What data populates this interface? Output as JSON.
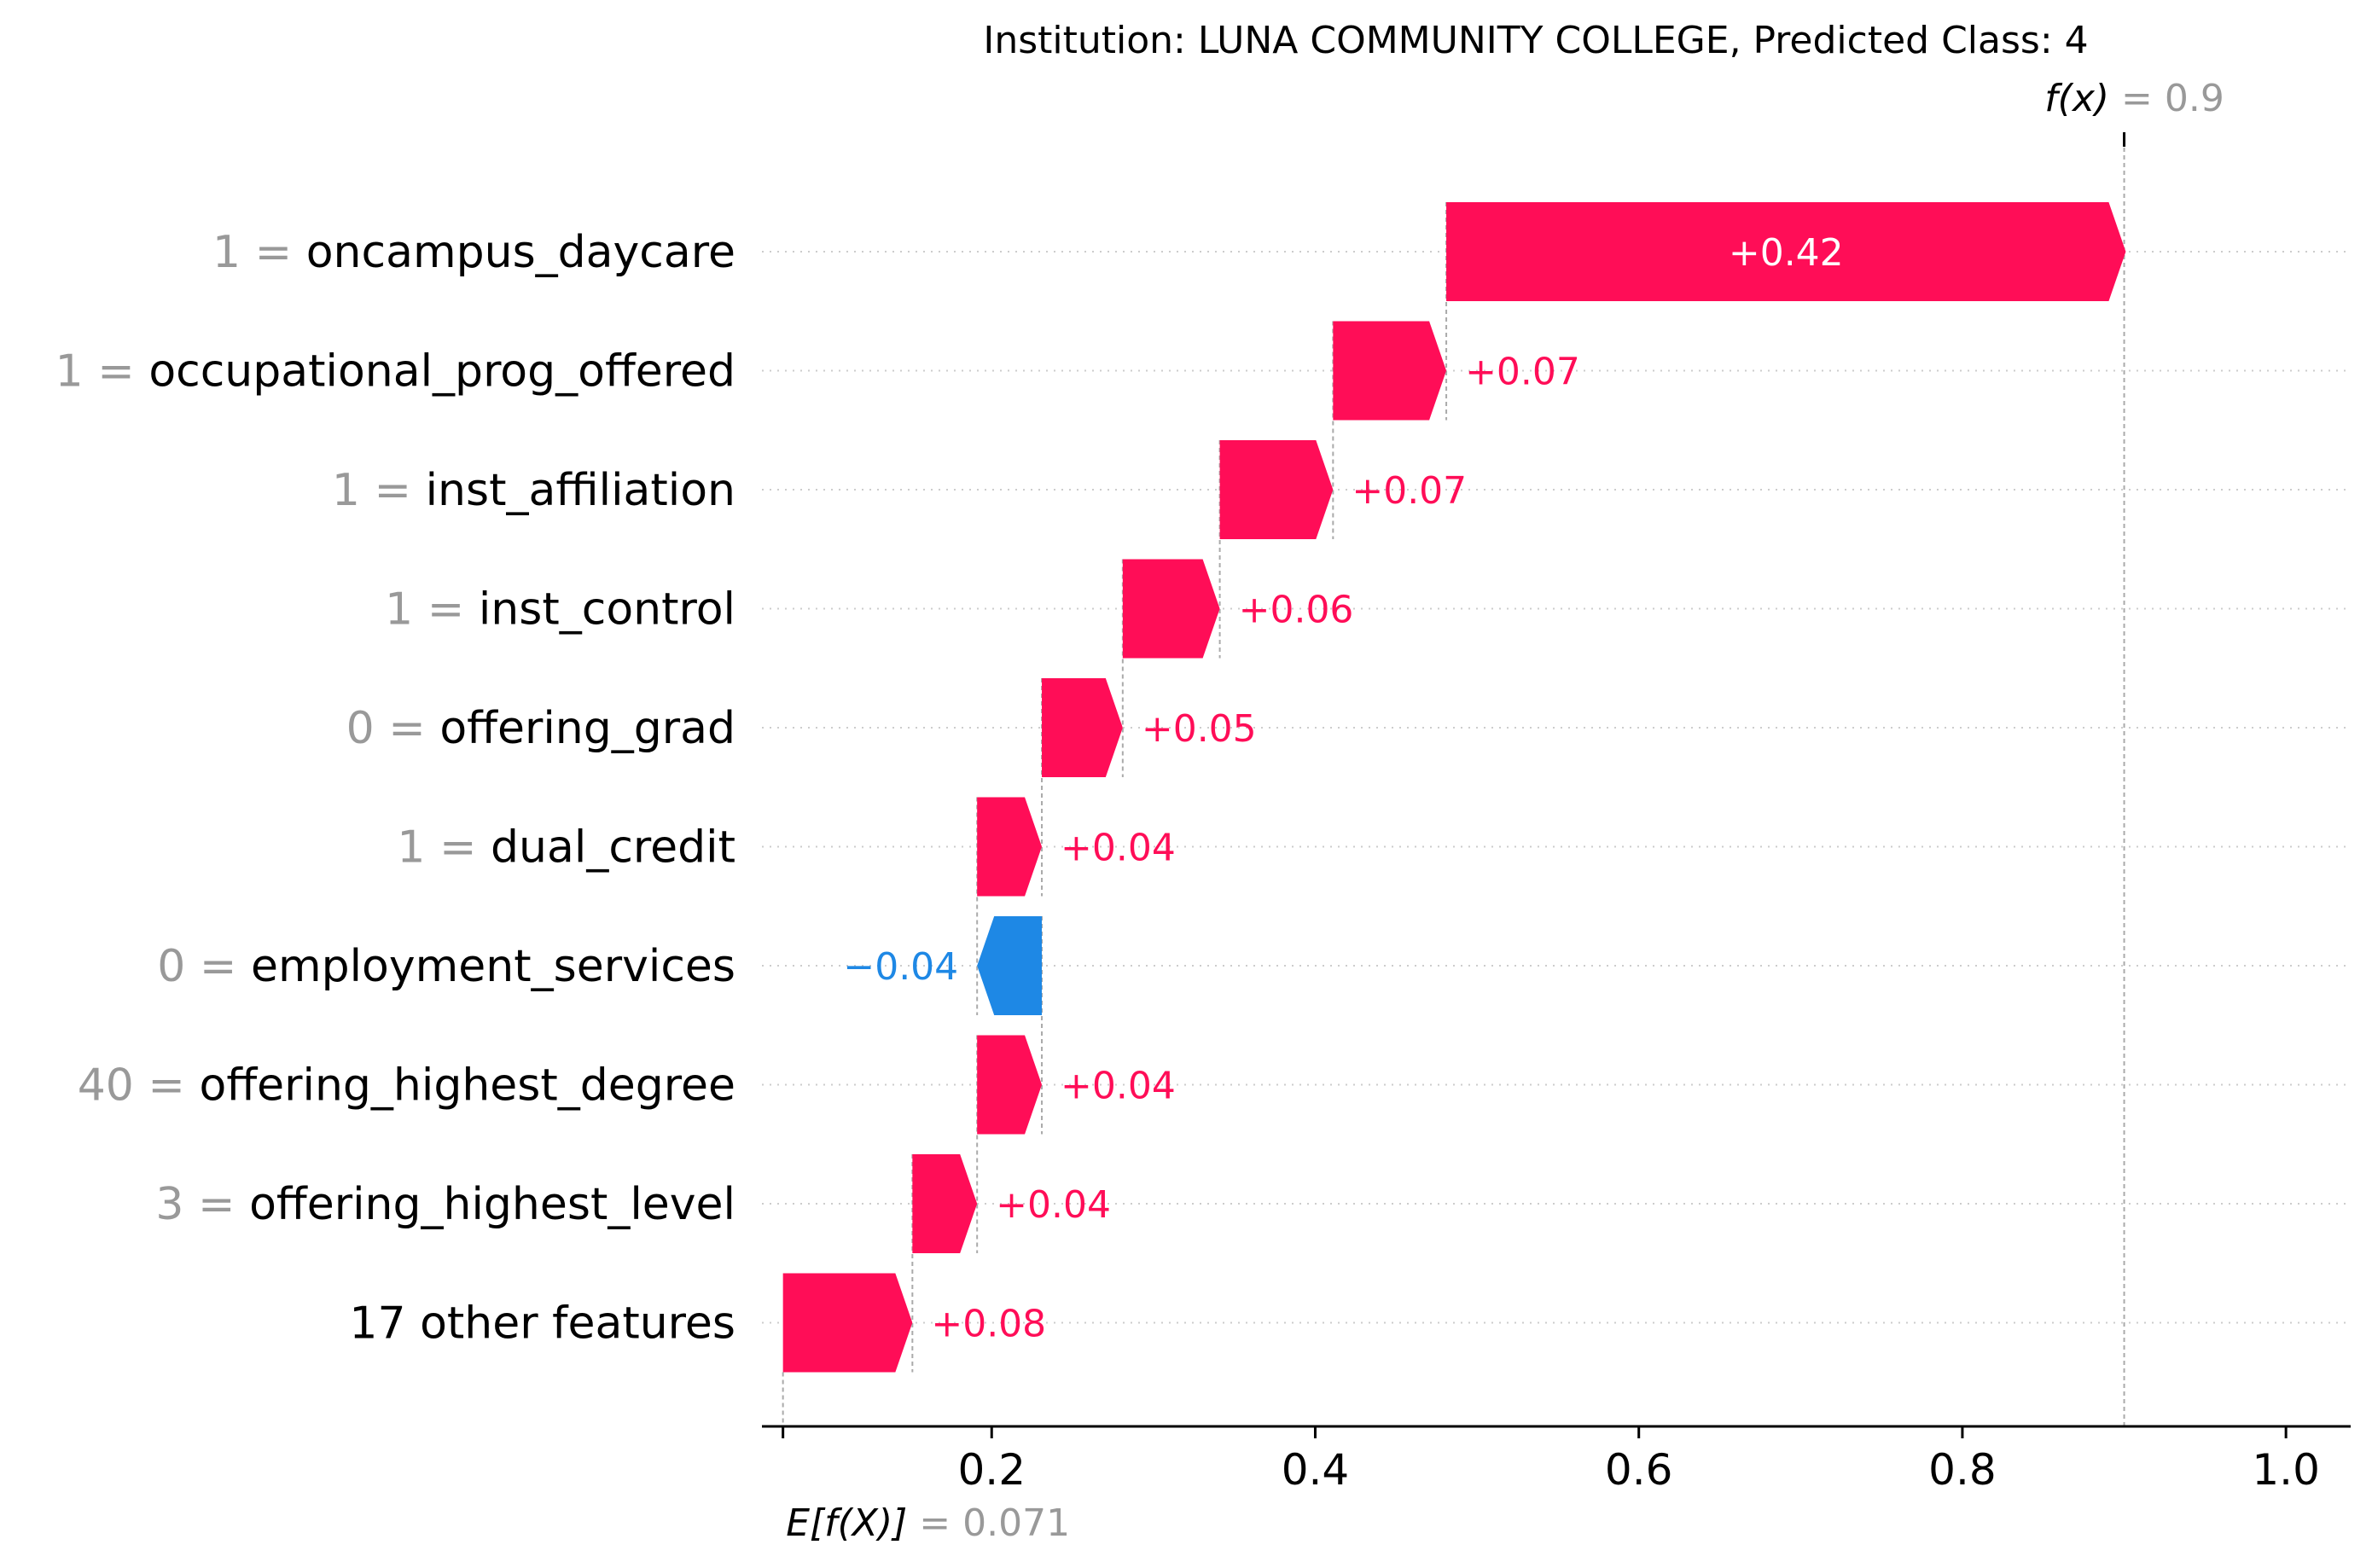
{
  "chart_data": {
    "type": "waterfall",
    "title": "Institution: LUNA COMMUNITY COLLEGE, Predicted Class: 4",
    "xlim": [
      0.058,
      1.04
    ],
    "xticks": [
      0.2,
      0.4,
      0.6,
      0.8,
      1.0
    ],
    "xtick_labels": [
      "0.2",
      "0.4",
      "0.6",
      "0.8",
      "1.0"
    ],
    "base_value": 0.071,
    "base_label": "E[f(X)]",
    "base_value_label": "= 0.071",
    "output_value": 0.9,
    "output_label": "f(x)",
    "output_value_label": "= 0.9",
    "features": [
      {
        "value": "1",
        "name": "oncampus_daycare",
        "contribution": 0.42,
        "label": "+0.42",
        "label_inside": true
      },
      {
        "value": "1",
        "name": "occupational_prog_offered",
        "contribution": 0.07,
        "label": "+0.07"
      },
      {
        "value": "1",
        "name": "inst_affiliation",
        "contribution": 0.07,
        "label": "+0.07"
      },
      {
        "value": "1",
        "name": "inst_control",
        "contribution": 0.06,
        "label": "+0.06"
      },
      {
        "value": "0",
        "name": "offering_grad",
        "contribution": 0.05,
        "label": "+0.05"
      },
      {
        "value": "1",
        "name": "dual_credit",
        "contribution": 0.04,
        "label": "+0.04"
      },
      {
        "value": "0",
        "name": "employment_services",
        "contribution": -0.04,
        "label": "−0.04"
      },
      {
        "value": "40",
        "name": "offering_highest_degree",
        "contribution": 0.04,
        "label": "+0.04"
      },
      {
        "value": "3",
        "name": "offering_highest_level",
        "contribution": 0.04,
        "label": "+0.04"
      },
      {
        "value": "",
        "name": "17 other features",
        "contribution": 0.08,
        "label": "+0.08"
      }
    ],
    "colors": {
      "positive": "#ff0d57",
      "negative": "#1e88e5",
      "value_text": "#999999",
      "text": "#000000"
    }
  }
}
